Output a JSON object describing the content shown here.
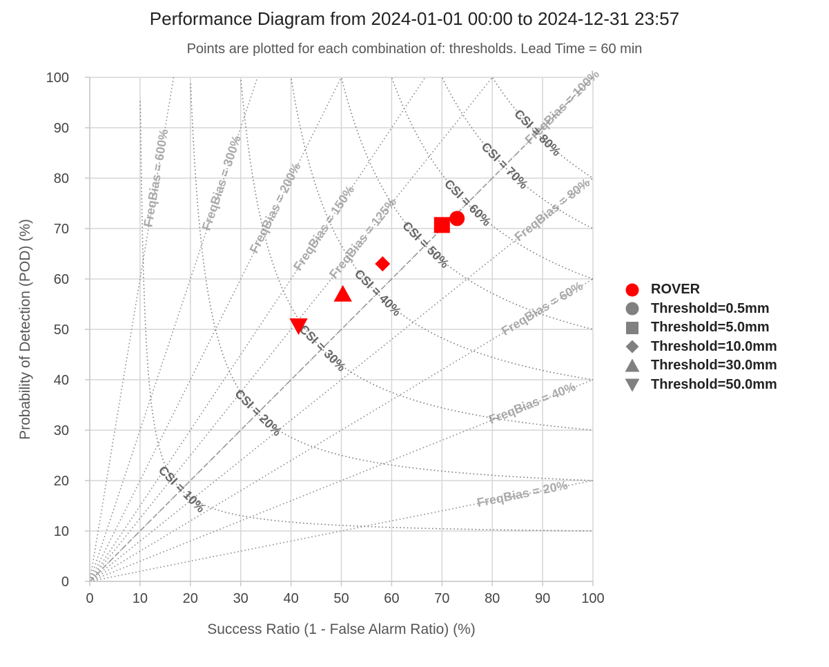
{
  "chart_data": {
    "type": "scatter",
    "title": "Performance Diagram from 2024-01-01 00:00 to 2024-12-31 23:57",
    "subtitle": "Points are plotted for each combination of: thresholds. Lead Time = 60 min",
    "xlabel": "Success Ratio (1 - False Alarm Ratio) (%)",
    "ylabel": "Probability of Detection (POD) (%)",
    "xlim": [
      0,
      100
    ],
    "ylim": [
      0,
      100
    ],
    "x_ticks": [
      "0",
      "10",
      "20",
      "30",
      "40",
      "50",
      "60",
      "70",
      "80",
      "90",
      "100"
    ],
    "y_ticks": [
      "0",
      "10",
      "20",
      "30",
      "40",
      "50",
      "60",
      "70",
      "80",
      "90",
      "100"
    ],
    "grid": true,
    "legend_position": "right",
    "series": [
      {
        "name": "ROVER",
        "color": "#ff0000",
        "points": [
          {
            "label": "Threshold=0.5mm",
            "marker": "circle",
            "x": 73,
            "y": 72
          },
          {
            "label": "Threshold=5.0mm",
            "marker": "square",
            "x": 70,
            "y": 70.7
          },
          {
            "label": "Threshold=10.0mm",
            "marker": "diamond",
            "x": 58.2,
            "y": 63
          },
          {
            "label": "Threshold=30.0mm",
            "marker": "triangle-up",
            "x": 50.3,
            "y": 57
          },
          {
            "label": "Threshold=50.0mm",
            "marker": "triangle-down",
            "x": 41.5,
            "y": 50.7
          }
        ]
      }
    ],
    "freq_bias_lines": [
      {
        "value": 6,
        "label": "FreqBias = 600%"
      },
      {
        "value": 3,
        "label": "FreqBias = 300%"
      },
      {
        "value": 2,
        "label": "FreqBias = 200%"
      },
      {
        "value": 1.5,
        "label": "FreqBias = 150%"
      },
      {
        "value": 1.25,
        "label": "FreqBias = 125%"
      },
      {
        "value": 1,
        "label": "FreqBias = 100%"
      },
      {
        "value": 0.8,
        "label": "FreqBias = 80%"
      },
      {
        "value": 0.6,
        "label": "FreqBias = 60%"
      },
      {
        "value": 0.4,
        "label": "FreqBias = 40%"
      },
      {
        "value": 0.2,
        "label": "FreqBias = 20%"
      }
    ],
    "csi_lines": [
      {
        "value": 0.1,
        "label": "CSI = 10%"
      },
      {
        "value": 0.2,
        "label": "CSI = 20%"
      },
      {
        "value": 0.3,
        "label": "CSI = 30%"
      },
      {
        "value": 0.4,
        "label": "CSI = 40%"
      },
      {
        "value": 0.5,
        "label": "CSI = 50%"
      },
      {
        "value": 0.6,
        "label": "CSI = 60%"
      },
      {
        "value": 0.7,
        "label": "CSI = 70%"
      },
      {
        "value": 0.8,
        "label": "CSI = 80%"
      }
    ]
  },
  "legend": {
    "items": [
      {
        "label": "ROVER",
        "icon": "circle-icon",
        "color": "#ff0000"
      },
      {
        "label": "Threshold=0.5mm",
        "icon": "circle-icon",
        "color": "#808080"
      },
      {
        "label": "Threshold=5.0mm",
        "icon": "square-icon",
        "color": "#808080"
      },
      {
        "label": "Threshold=10.0mm",
        "icon": "diamond-icon",
        "color": "#808080"
      },
      {
        "label": "Threshold=30.0mm",
        "icon": "triangle-up-icon",
        "color": "#808080"
      },
      {
        "label": "Threshold=50.0mm",
        "icon": "triangle-down-icon",
        "color": "#808080"
      }
    ]
  }
}
